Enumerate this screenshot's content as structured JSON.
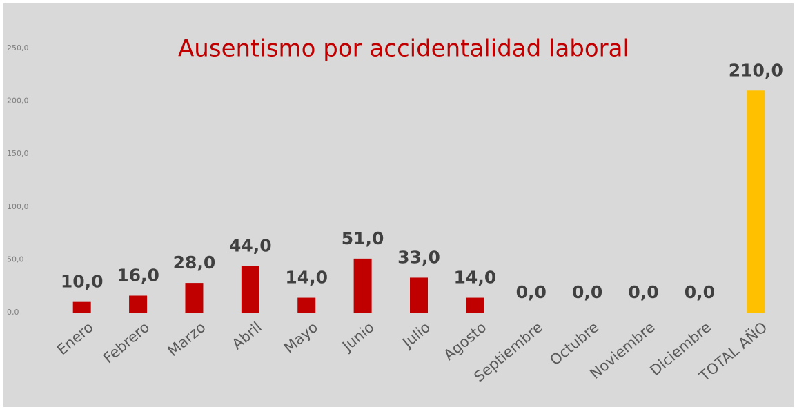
{
  "chart_data": {
    "type": "bar",
    "title": "Ausentismo por accidentalidad laboral",
    "categories": [
      "Enero",
      "Febrero",
      "Marzo",
      "Abril",
      "Mayo",
      "Junio",
      "Julio",
      "Agosto",
      "Septiembre",
      "Octubre",
      "Noviembre",
      "Diciembre",
      "TOTAL AÑO"
    ],
    "values": [
      10,
      16,
      28,
      44,
      14,
      51,
      33,
      14,
      0,
      0,
      0,
      0,
      210
    ],
    "value_labels": [
      "10,0",
      "16,0",
      "28,0",
      "44,0",
      "14,0",
      "51,0",
      "33,0",
      "14,0",
      "0,0",
      "0,0",
      "0,0",
      "0,0",
      "210,0"
    ],
    "colors": [
      "#c00000",
      "#c00000",
      "#c00000",
      "#c00000",
      "#c00000",
      "#c00000",
      "#c00000",
      "#c00000",
      "#c00000",
      "#c00000",
      "#c00000",
      "#c00000",
      "#ffc000"
    ],
    "ylim": [
      0,
      250
    ],
    "yticks": [
      {
        "value": 0,
        "label": "0,0"
      },
      {
        "value": 50,
        "label": "50,0"
      },
      {
        "value": 100,
        "label": "100,0"
      },
      {
        "value": 150,
        "label": "150,0"
      },
      {
        "value": 200,
        "label": "200,0"
      },
      {
        "value": 250,
        "label": "250,0"
      }
    ],
    "grid": false
  }
}
